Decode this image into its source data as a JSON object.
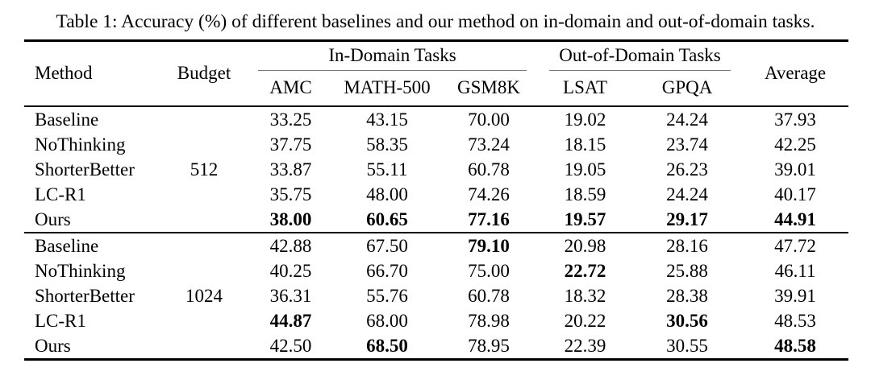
{
  "caption": "Table 1: Accuracy (%) of different baselines and our method on in-domain and out-of-domain tasks.",
  "colors": {
    "background": "#ffffff",
    "text": "#000000",
    "heavy_rule": "#000000",
    "cmidrule": "#777777"
  },
  "table": {
    "header": {
      "method": "Method",
      "budget": "Budget",
      "in_domain": "In-Domain Tasks",
      "out_domain": "Out-of-Domain Tasks",
      "average": "Average",
      "cols": [
        "AMC",
        "MATH-500",
        "GSM8K",
        "LSAT",
        "GPQA"
      ]
    },
    "groups": [
      {
        "budget": "512",
        "rows": [
          {
            "method": "Baseline",
            "cells": [
              {
                "v": "33.25",
                "b": false
              },
              {
                "v": "43.15",
                "b": false
              },
              {
                "v": "70.00",
                "b": false
              },
              {
                "v": "19.02",
                "b": false
              },
              {
                "v": "24.24",
                "b": false
              },
              {
                "v": "37.93",
                "b": false
              }
            ]
          },
          {
            "method": "NoThinking",
            "cells": [
              {
                "v": "37.75",
                "b": false
              },
              {
                "v": "58.35",
                "b": false
              },
              {
                "v": "73.24",
                "b": false
              },
              {
                "v": "18.15",
                "b": false
              },
              {
                "v": "23.74",
                "b": false
              },
              {
                "v": "42.25",
                "b": false
              }
            ]
          },
          {
            "method": "ShorterBetter",
            "cells": [
              {
                "v": "33.87",
                "b": false
              },
              {
                "v": "55.11",
                "b": false
              },
              {
                "v": "60.78",
                "b": false
              },
              {
                "v": "19.05",
                "b": false
              },
              {
                "v": "26.23",
                "b": false
              },
              {
                "v": "39.01",
                "b": false
              }
            ]
          },
          {
            "method": "LC-R1",
            "cells": [
              {
                "v": "35.75",
                "b": false
              },
              {
                "v": "48.00",
                "b": false
              },
              {
                "v": "74.26",
                "b": false
              },
              {
                "v": "18.59",
                "b": false
              },
              {
                "v": "24.24",
                "b": false
              },
              {
                "v": "40.17",
                "b": false
              }
            ]
          },
          {
            "method": "Ours",
            "cells": [
              {
                "v": "38.00",
                "b": true
              },
              {
                "v": "60.65",
                "b": true
              },
              {
                "v": "77.16",
                "b": true
              },
              {
                "v": "19.57",
                "b": true
              },
              {
                "v": "29.17",
                "b": true
              },
              {
                "v": "44.91",
                "b": true
              }
            ]
          }
        ]
      },
      {
        "budget": "1024",
        "rows": [
          {
            "method": "Baseline",
            "cells": [
              {
                "v": "42.88",
                "b": false
              },
              {
                "v": "67.50",
                "b": false
              },
              {
                "v": "79.10",
                "b": true
              },
              {
                "v": "20.98",
                "b": false
              },
              {
                "v": "28.16",
                "b": false
              },
              {
                "v": "47.72",
                "b": false
              }
            ]
          },
          {
            "method": "NoThinking",
            "cells": [
              {
                "v": "40.25",
                "b": false
              },
              {
                "v": "66.70",
                "b": false
              },
              {
                "v": "75.00",
                "b": false
              },
              {
                "v": "22.72",
                "b": true
              },
              {
                "v": "25.88",
                "b": false
              },
              {
                "v": "46.11",
                "b": false
              }
            ]
          },
          {
            "method": "ShorterBetter",
            "cells": [
              {
                "v": "36.31",
                "b": false
              },
              {
                "v": "55.76",
                "b": false
              },
              {
                "v": "60.78",
                "b": false
              },
              {
                "v": "18.32",
                "b": false
              },
              {
                "v": "28.38",
                "b": false
              },
              {
                "v": "39.91",
                "b": false
              }
            ]
          },
          {
            "method": "LC-R1",
            "cells": [
              {
                "v": "44.87",
                "b": true
              },
              {
                "v": "68.00",
                "b": false
              },
              {
                "v": "78.98",
                "b": false
              },
              {
                "v": "20.22",
                "b": false
              },
              {
                "v": "30.56",
                "b": true
              },
              {
                "v": "48.53",
                "b": false
              }
            ]
          },
          {
            "method": "Ours",
            "cells": [
              {
                "v": "42.50",
                "b": false
              },
              {
                "v": "68.50",
                "b": true
              },
              {
                "v": "78.95",
                "b": false
              },
              {
                "v": "22.39",
                "b": false
              },
              {
                "v": "30.55",
                "b": false
              },
              {
                "v": "48.58",
                "b": true
              }
            ]
          }
        ]
      }
    ]
  }
}
